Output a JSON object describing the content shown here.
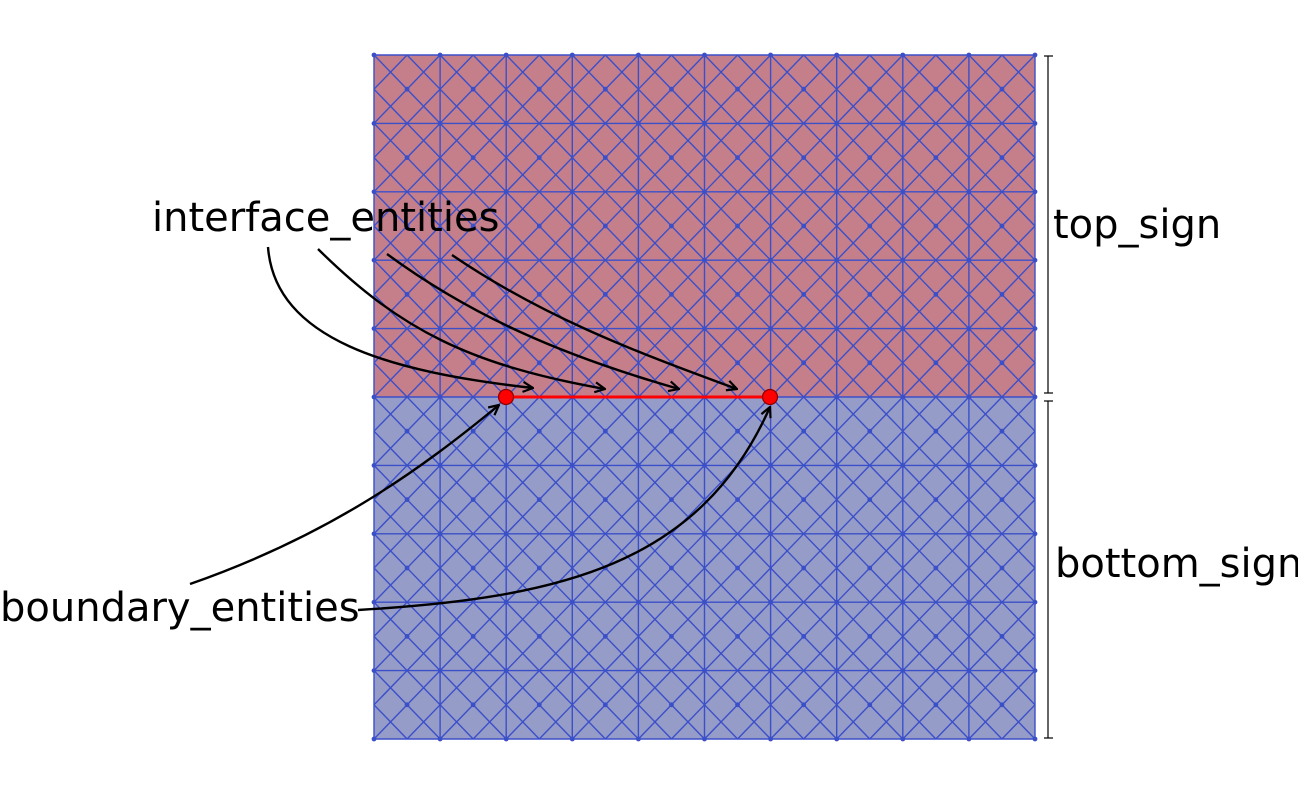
{
  "labels": {
    "interface": "interface_entities",
    "boundary": "boundary_entities",
    "top": "top_sign",
    "bottom": "bottom_sign"
  },
  "mesh": {
    "cells_x": 10,
    "cells_y": 10,
    "top_rows": 5,
    "colors": {
      "top_fill": "#c47f8b",
      "bottom_fill": "#969cc8",
      "line": "#3b4fc9",
      "interface": "#ff0000",
      "boundary_point": "#ff0000"
    }
  }
}
